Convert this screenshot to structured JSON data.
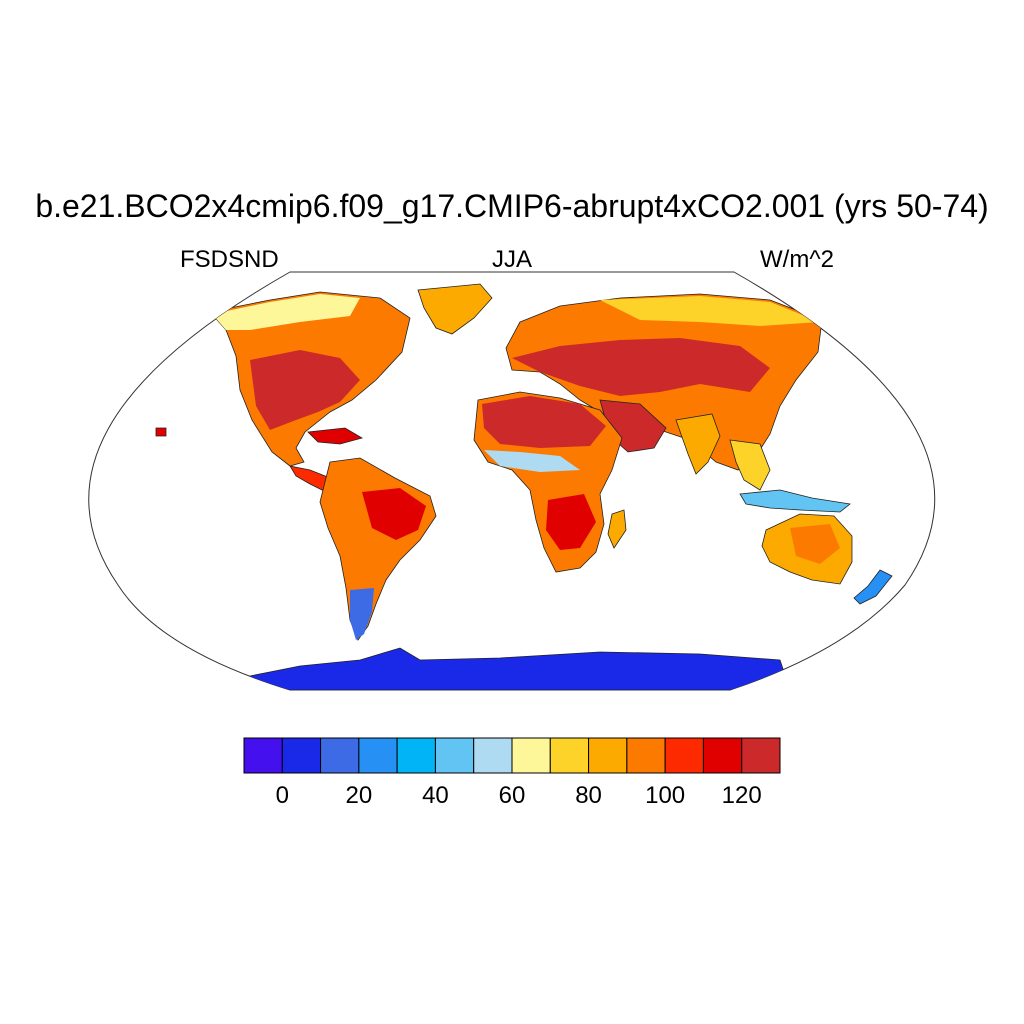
{
  "title": "b.e21.BCO2x4cmip6.f09_g17.CMIP6-abrupt4xCO2.001 (yrs 50-74)",
  "left_label": "FSDSND",
  "center_label": "JJA",
  "right_label": "W/m^2",
  "colorbar": {
    "colors": [
      "#4411ee",
      "#1a29e8",
      "#3d6be6",
      "#2690f5",
      "#00b4f5",
      "#62c4f2",
      "#aedaf2",
      "#fdf79a",
      "#fdd32a",
      "#fdaa00",
      "#fd7a00",
      "#fd2a00",
      "#e00000",
      "#cc2a2a"
    ],
    "tick_labels": [
      "0",
      "20",
      "40",
      "60",
      "80",
      "100",
      "120"
    ]
  },
  "chart_data": {
    "type": "heatmap",
    "title": "b.e21.BCO2x4cmip6.f09_g17.CMIP6-abrupt4xCO2.001 (yrs 50-74)",
    "variable": "FSDSND",
    "season": "JJA",
    "units": "W/m^2",
    "levels": [
      -10,
      0,
      10,
      20,
      30,
      40,
      50,
      60,
      70,
      80,
      90,
      100,
      110,
      120,
      130
    ]
  }
}
